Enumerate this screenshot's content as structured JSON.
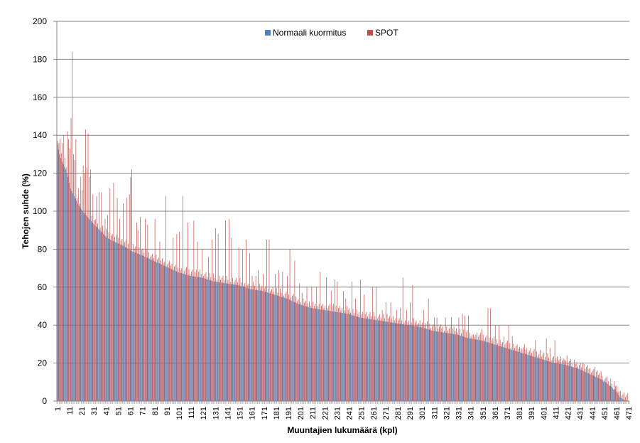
{
  "chart_data": {
    "type": "bar",
    "xlabel": "Muuntajien lukumäärä (kpl)",
    "ylabel": "Tehojen suhde (%)",
    "ylim": [
      0,
      200
    ],
    "yticks": [
      0,
      20,
      40,
      60,
      80,
      100,
      120,
      140,
      160,
      180,
      200
    ],
    "xlim": [
      1,
      471
    ],
    "xticks": [
      1,
      11,
      21,
      31,
      41,
      51,
      61,
      71,
      81,
      91,
      101,
      111,
      121,
      131,
      141,
      151,
      161,
      171,
      181,
      191,
      201,
      211,
      221,
      231,
      241,
      251,
      261,
      271,
      281,
      291,
      301,
      311,
      321,
      331,
      341,
      351,
      361,
      371,
      381,
      391,
      401,
      411,
      421,
      431,
      441,
      451,
      461,
      471
    ],
    "grid": true,
    "legend": "top-center",
    "colors": {
      "normal": "#4f81bd",
      "spot": "#c0504d",
      "gridline": "#868686",
      "axis": "#868686"
    },
    "series": [
      {
        "name": "Normaali kuormitus",
        "description_of_shape": "sorted descending per transformer",
        "profile": [
          [
            1,
            135
          ],
          [
            3,
            130
          ],
          [
            5,
            126
          ],
          [
            8,
            122
          ],
          [
            10,
            118
          ],
          [
            12,
            112
          ],
          [
            15,
            108
          ],
          [
            18,
            104
          ],
          [
            22,
            100
          ],
          [
            26,
            97
          ],
          [
            30,
            94
          ],
          [
            36,
            90
          ],
          [
            42,
            86
          ],
          [
            48,
            84
          ],
          [
            55,
            82
          ],
          [
            62,
            79
          ],
          [
            70,
            77
          ],
          [
            80,
            74
          ],
          [
            90,
            71
          ],
          [
            100,
            68
          ],
          [
            110,
            66
          ],
          [
            120,
            65
          ],
          [
            130,
            63
          ],
          [
            140,
            62
          ],
          [
            150,
            61
          ],
          [
            160,
            59
          ],
          [
            170,
            58
          ],
          [
            180,
            56
          ],
          [
            190,
            54
          ],
          [
            200,
            51
          ],
          [
            210,
            49
          ],
          [
            220,
            48
          ],
          [
            230,
            47
          ],
          [
            240,
            46
          ],
          [
            250,
            44
          ],
          [
            260,
            43
          ],
          [
            270,
            42
          ],
          [
            280,
            41
          ],
          [
            290,
            40
          ],
          [
            300,
            39
          ],
          [
            310,
            37
          ],
          [
            320,
            36
          ],
          [
            330,
            35
          ],
          [
            340,
            33
          ],
          [
            350,
            32
          ],
          [
            360,
            30
          ],
          [
            370,
            28
          ],
          [
            380,
            26
          ],
          [
            390,
            24
          ],
          [
            400,
            22
          ],
          [
            410,
            20
          ],
          [
            420,
            19
          ],
          [
            430,
            17
          ],
          [
            440,
            14
          ],
          [
            450,
            11
          ],
          [
            460,
            6
          ],
          [
            464,
            2
          ],
          [
            466,
            1
          ],
          [
            471,
            0
          ]
        ]
      },
      {
        "name": "SPOT",
        "peaks": [
          [
            1,
            137
          ],
          [
            3,
            138
          ],
          [
            5,
            136
          ],
          [
            6,
            140
          ],
          [
            7,
            128
          ],
          [
            8,
            123
          ],
          [
            9,
            142
          ],
          [
            10,
            138
          ],
          [
            11,
            133
          ],
          [
            12,
            149
          ],
          [
            13,
            184
          ],
          [
            14,
            130
          ],
          [
            15,
            127
          ],
          [
            16,
            138
          ],
          [
            18,
            112
          ],
          [
            19,
            104
          ],
          [
            20,
            118
          ],
          [
            21,
            111
          ],
          [
            22,
            124
          ],
          [
            23,
            120
          ],
          [
            24,
            143
          ],
          [
            25,
            123
          ],
          [
            26,
            141
          ],
          [
            27,
            118
          ],
          [
            28,
            122
          ],
          [
            30,
            109
          ],
          [
            33,
            108
          ],
          [
            35,
            110
          ],
          [
            37,
            110
          ],
          [
            40,
            96
          ],
          [
            42,
            98
          ],
          [
            44,
            112
          ],
          [
            47,
            115
          ],
          [
            50,
            107
          ],
          [
            52,
            96
          ],
          [
            55,
            104
          ],
          [
            58,
            107
          ],
          [
            60,
            109
          ],
          [
            61,
            118
          ],
          [
            62,
            122
          ],
          [
            66,
            94
          ],
          [
            67,
            90
          ],
          [
            69,
            97
          ],
          [
            73,
            96
          ],
          [
            75,
            93
          ],
          [
            81,
            96
          ],
          [
            85,
            84
          ],
          [
            90,
            108
          ],
          [
            96,
            86
          ],
          [
            99,
            88
          ],
          [
            101,
            89
          ],
          [
            104,
            108
          ],
          [
            108,
            94
          ],
          [
            113,
            95
          ],
          [
            116,
            84
          ],
          [
            120,
            80
          ],
          [
            125,
            76
          ],
          [
            128,
            85
          ],
          [
            131,
            91
          ],
          [
            133,
            88
          ],
          [
            139,
            95
          ],
          [
            142,
            96
          ],
          [
            144,
            86
          ],
          [
            150,
            81
          ],
          [
            153,
            80
          ],
          [
            156,
            85
          ],
          [
            159,
            78
          ],
          [
            161,
            66
          ],
          [
            164,
            66
          ],
          [
            166,
            69
          ],
          [
            170,
            67
          ],
          [
            173,
            85
          ],
          [
            175,
            85
          ],
          [
            180,
            67
          ],
          [
            183,
            69
          ],
          [
            186,
            68
          ],
          [
            190,
            66
          ],
          [
            192,
            80
          ],
          [
            196,
            74
          ],
          [
            200,
            62
          ],
          [
            202,
            57
          ],
          [
            206,
            60
          ],
          [
            210,
            60
          ],
          [
            214,
            60
          ],
          [
            217,
            68
          ],
          [
            222,
            65
          ],
          [
            226,
            58
          ],
          [
            229,
            64
          ],
          [
            231,
            63
          ],
          [
            236,
            58
          ],
          [
            238,
            54
          ],
          [
            243,
            63
          ],
          [
            246,
            54
          ],
          [
            250,
            64
          ],
          [
            253,
            56
          ],
          [
            260,
            60
          ],
          [
            263,
            60
          ],
          [
            268,
            48
          ],
          [
            271,
            52
          ],
          [
            275,
            52
          ],
          [
            280,
            48
          ],
          [
            283,
            49
          ],
          [
            285,
            65
          ],
          [
            288,
            48
          ],
          [
            291,
            52
          ],
          [
            293,
            61
          ],
          [
            298,
            41
          ],
          [
            302,
            48
          ],
          [
            306,
            54
          ],
          [
            311,
            44
          ],
          [
            313,
            44
          ],
          [
            320,
            44
          ],
          [
            325,
            44
          ],
          [
            331,
            44
          ],
          [
            334,
            46
          ],
          [
            336,
            45
          ],
          [
            339,
            45
          ],
          [
            343,
            35
          ],
          [
            350,
            38
          ],
          [
            355,
            49
          ],
          [
            357,
            49
          ],
          [
            361,
            40
          ],
          [
            364,
            40
          ],
          [
            368,
            34
          ],
          [
            372,
            40
          ],
          [
            375,
            34
          ],
          [
            382,
            28
          ],
          [
            385,
            30
          ],
          [
            390,
            28
          ],
          [
            394,
            32
          ],
          [
            398,
            27
          ],
          [
            403,
            33
          ],
          [
            406,
            28
          ],
          [
            410,
            32
          ],
          [
            414,
            22
          ],
          [
            418,
            22
          ],
          [
            420,
            24
          ],
          [
            425,
            18
          ],
          [
            430,
            19
          ],
          [
            433,
            20
          ],
          [
            438,
            17
          ],
          [
            441,
            16
          ],
          [
            443,
            18
          ],
          [
            450,
            10
          ],
          [
            455,
            8
          ],
          [
            458,
            6
          ]
        ]
      }
    ]
  }
}
